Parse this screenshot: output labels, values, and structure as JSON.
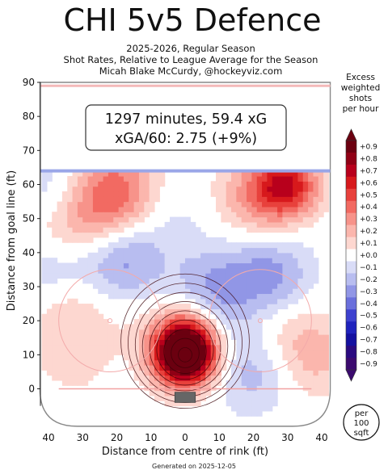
{
  "chart_data": {
    "type": "heatmap",
    "title": "CHI 5v5 Defence",
    "subtitle_lines": [
      "2025-2026, Regular Season",
      "Shot Rates, Relative to League Average for the Season",
      "Micah Blake McCurdy, @hockeyviz.com"
    ],
    "xlabel": "Distance from centre of rink (ft)",
    "ylabel": "Distance from goal line (ft)",
    "xlim": [
      -42,
      42
    ],
    "ylim": [
      -5,
      90
    ],
    "x_ticks": [
      {
        "value": -40,
        "label": "40"
      },
      {
        "value": -30,
        "label": "30"
      },
      {
        "value": -20,
        "label": "20"
      },
      {
        "value": -10,
        "label": "10"
      },
      {
        "value": 0,
        "label": "0"
      },
      {
        "value": 10,
        "label": "10"
      },
      {
        "value": 20,
        "label": "20"
      },
      {
        "value": 30,
        "label": "30"
      },
      {
        "value": 40,
        "label": "40"
      }
    ],
    "y_ticks": [
      {
        "value": 0,
        "label": "0"
      },
      {
        "value": 10,
        "label": "10"
      },
      {
        "value": 20,
        "label": "20"
      },
      {
        "value": 30,
        "label": "30"
      },
      {
        "value": 40,
        "label": "40"
      },
      {
        "value": 50,
        "label": "50"
      },
      {
        "value": 60,
        "label": "60"
      },
      {
        "value": 70,
        "label": "70"
      },
      {
        "value": 80,
        "label": "80"
      },
      {
        "value": 90,
        "label": "90"
      }
    ],
    "annotation_lines": [
      "1297 minutes, 59.4 xG",
      "xGA/60: 2.75 (+9%)"
    ],
    "colorbar": {
      "title_lines": [
        "Excess",
        "weighted",
        "shots",
        "per hour"
      ],
      "labels": [
        "+0.9",
        "+0.8",
        "+0.7",
        "+0.6",
        "+0.5",
        "+0.4",
        "+0.3",
        "+0.2",
        "+0.1",
        "+0.0",
        "−0.1",
        "−0.2",
        "−0.3",
        "−0.4",
        "−0.5",
        "−0.6",
        "−0.7",
        "−0.8",
        "−0.9"
      ],
      "colors": [
        "#6b0010",
        "#900015",
        "#b8001c",
        "#d7191c",
        "#e8413c",
        "#f26a62",
        "#f7938a",
        "#fbb6ad",
        "#fdd7d0",
        "#ffffff",
        "#d9dcf7",
        "#b8bdf0",
        "#9196e6",
        "#6a6fdc",
        "#3d41cf",
        "#1f22bd",
        "#1410a0",
        "#2a0a80",
        "#3b0a6e"
      ]
    },
    "unit_badge_lines": [
      "per",
      "100",
      "sqft"
    ],
    "hot_spots": [
      {
        "x": 0,
        "y": 9,
        "value": 0.9
      },
      {
        "x": 0,
        "y": 14,
        "value": 0.6
      },
      {
        "x": 30,
        "y": 60,
        "value": 0.55
      },
      {
        "x": 22,
        "y": 57,
        "value": 0.3
      },
      {
        "x": -22,
        "y": 54,
        "value": 0.3
      },
      {
        "x": -20,
        "y": 62,
        "value": 0.2
      },
      {
        "x": -35,
        "y": 47,
        "value": 0.2
      },
      {
        "x": -34,
        "y": 25,
        "value": 0.15
      },
      {
        "x": 37,
        "y": 10,
        "value": 0.2
      },
      {
        "x": -33,
        "y": 10,
        "value": 0.1
      },
      {
        "x": 26,
        "y": 20,
        "value": 0.1
      },
      {
        "x": 3,
        "y": 48,
        "value": 0.1
      },
      {
        "x": -18,
        "y": 38,
        "value": -0.3
      },
      {
        "x": -40,
        "y": 58,
        "value": -0.15
      },
      {
        "x": 25,
        "y": 33,
        "value": -0.3
      },
      {
        "x": 8,
        "y": 32,
        "value": -0.2
      },
      {
        "x": 0,
        "y": 50,
        "value": -0.15
      },
      {
        "x": -38,
        "y": 35,
        "value": -0.2
      },
      {
        "x": 20,
        "y": 5,
        "value": -0.2
      },
      {
        "x": 12,
        "y": 22,
        "value": -0.1
      },
      {
        "x": -12,
        "y": 20,
        "value": 0.05
      }
    ]
  },
  "footer": {
    "generated": "Generated on 2025-12-05"
  }
}
